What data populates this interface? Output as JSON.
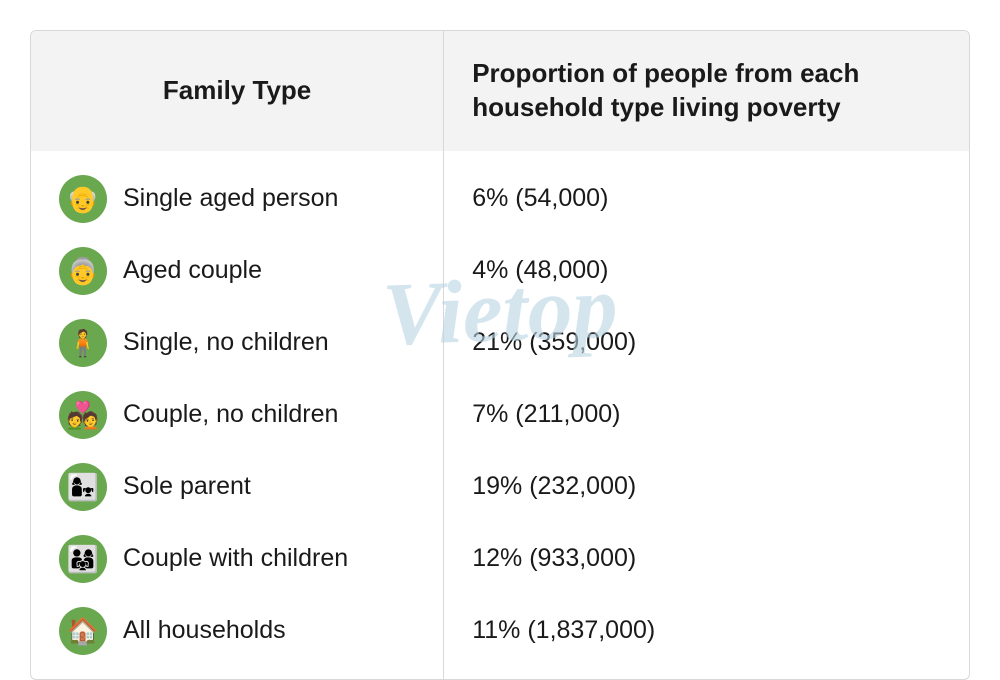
{
  "table": {
    "columns": [
      "Family Type",
      "Proportion of people from each household type living poverty"
    ],
    "header_bg": "#f3f3f3",
    "header_fontsize": 26,
    "cell_fontsize": 25,
    "border_color": "#d8d8d8",
    "icon_bg_color": "#6aa84f",
    "col_widths_pct": [
      44,
      56
    ],
    "rows": [
      {
        "icon": "👴",
        "icon_name": "single-aged-person-icon",
        "family_type": "Single aged person",
        "value": "6% (54,000)"
      },
      {
        "icon": "👵",
        "icon_name": "aged-couple-icon",
        "family_type": "Aged couple",
        "value": "4% (48,000)"
      },
      {
        "icon": "🧍",
        "icon_name": "single-no-children-icon",
        "family_type": "Single, no children",
        "value": "21% (359,000)"
      },
      {
        "icon": "💑",
        "icon_name": "couple-no-children-icon",
        "family_type": "Couple, no children",
        "value": "7% (211,000)"
      },
      {
        "icon": "👩‍👧",
        "icon_name": "sole-parent-icon",
        "family_type": "Sole parent",
        "value": "19% (232,000)"
      },
      {
        "icon": "👨‍👩‍👧",
        "icon_name": "couple-with-children-icon",
        "family_type": "Couple with children",
        "value": "12% (933,000)"
      },
      {
        "icon": "🏠",
        "icon_name": "all-households-icon",
        "family_type": "All households",
        "value": "11% (1,837,000)"
      }
    ]
  },
  "watermark": {
    "text": "Vietop",
    "color": "#b8d4e3",
    "fontsize": 90,
    "opacity": 0.6
  },
  "background_color": "#ffffff"
}
